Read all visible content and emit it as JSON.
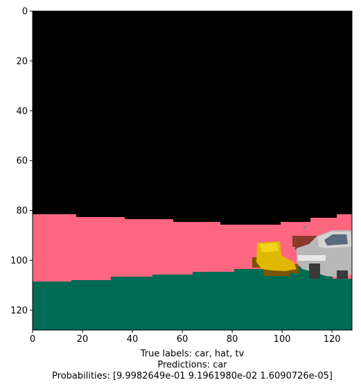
{
  "axes": {
    "x_ticks": [
      "0",
      "20",
      "40",
      "60",
      "80",
      "100",
      "120"
    ],
    "y_ticks": [
      "0",
      "20",
      "40",
      "60",
      "80",
      "100",
      "120"
    ],
    "xlim": [
      0,
      128
    ],
    "ylim": [
      128,
      0
    ]
  },
  "scene": {
    "sky_color": "#000000",
    "wall_color": "#ff6680",
    "ground_color": "#006b55",
    "objects": [
      "hat",
      "car",
      "tv"
    ]
  },
  "caption": {
    "line1": "True labels: car, hat, tv",
    "line2": "Predictions: car",
    "line3": "Probabilities: [9.9982649e-01 9.1961980e-02 1.6090726e-05]"
  }
}
